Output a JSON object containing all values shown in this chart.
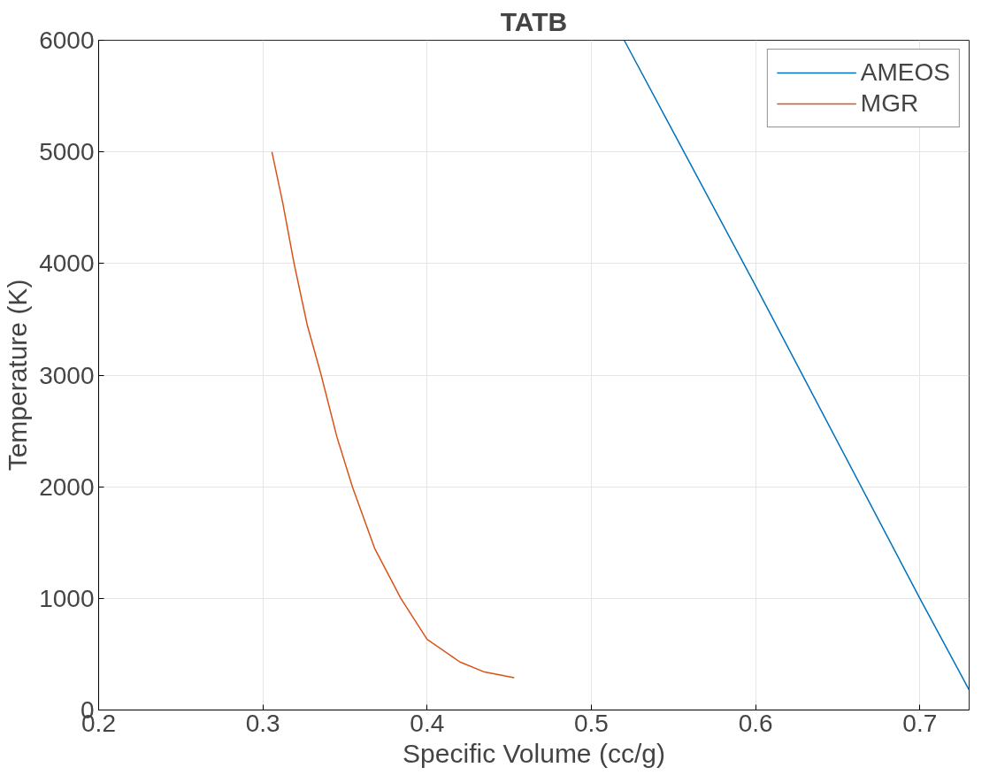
{
  "chart_data": {
    "type": "line",
    "title": "TATB",
    "xlabel": "Specific Volume (cc/g)",
    "ylabel": "Temperature (K)",
    "xlim": [
      0.2,
      0.73
    ],
    "ylim": [
      0,
      6000
    ],
    "xticks": [
      0.2,
      0.3,
      0.4,
      0.5,
      0.6,
      0.7
    ],
    "yticks": [
      0,
      1000,
      2000,
      3000,
      4000,
      5000,
      6000
    ],
    "grid": true,
    "legend": "top right",
    "line_style": "solid",
    "marker": "none",
    "series": [
      {
        "name": "AMEOS",
        "color": "#0072bd",
        "x": [
          0.52,
          0.6,
          0.7,
          0.73
        ],
        "values": [
          6000,
          3800,
          1000,
          180
        ]
      },
      {
        "name": "MGR",
        "color": "#d95319",
        "x": [
          0.3055,
          0.312,
          0.319,
          0.327,
          0.3355,
          0.345,
          0.3545,
          0.368,
          0.384,
          0.4,
          0.42,
          0.435,
          0.453
        ],
        "values": [
          5000,
          4550,
          4000,
          3450,
          3000,
          2450,
          2000,
          1450,
          1000,
          633,
          430,
          340,
          290
        ]
      }
    ]
  }
}
